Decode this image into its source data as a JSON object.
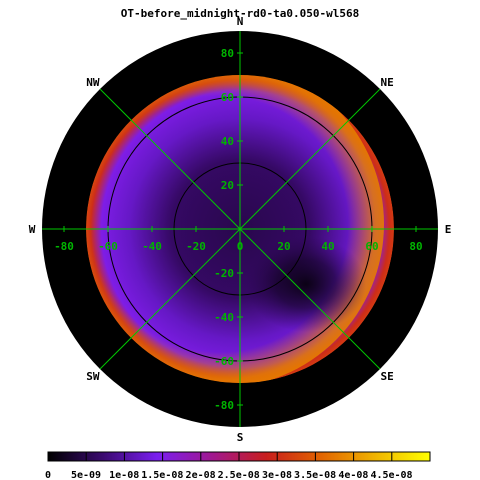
{
  "title": "OT-before_midnight-rd0-ta0.050-wl568",
  "colors": {
    "grid": "#00c800",
    "tick_text": "#00b400",
    "ring": "#000000",
    "background": "#000000"
  },
  "chart_data": {
    "type": "heatmap",
    "projection": "polar-sky",
    "title": "OT-before_midnight-rd0-ta0.050-wl568",
    "x_range": [
      -90,
      90
    ],
    "y_range": [
      -90,
      90
    ],
    "x_ticks": [
      "-80",
      "-60",
      "-40",
      "-20",
      "0",
      "20",
      "40",
      "60",
      "80"
    ],
    "x_tick_values": [
      -80,
      -60,
      -40,
      -20,
      0,
      20,
      40,
      60,
      80
    ],
    "y_ticks": [
      "80",
      "60",
      "40",
      "20",
      "0",
      "-20",
      "-40",
      "-60",
      "-80"
    ],
    "y_tick_values": [
      80,
      60,
      40,
      20,
      0,
      -20,
      -40,
      -60,
      -80
    ],
    "compass": [
      {
        "label": "N",
        "angle": 90
      },
      {
        "label": "NE",
        "angle": 45
      },
      {
        "label": "E",
        "angle": 0
      },
      {
        "label": "SE",
        "angle": -45
      },
      {
        "label": "S",
        "angle": -90
      },
      {
        "label": "SW",
        "angle": -135
      },
      {
        "label": "W",
        "angle": 180
      },
      {
        "label": "NW",
        "angle": 135
      }
    ],
    "zenith_rings": [
      30,
      60
    ],
    "data_extent_radius": 70,
    "colorbar": {
      "min": 0,
      "max": 5e-08,
      "tick_labels": [
        "0",
        "5e-09",
        "1e-08",
        "1.5e-08",
        "2e-08",
        "2.5e-08",
        "3e-08",
        "3.5e-08",
        "4e-08",
        "4.5e-08"
      ],
      "tick_values": [
        0,
        5e-09,
        1e-08,
        1.5e-08,
        2e-08,
        2.5e-08,
        3e-08,
        3.5e-08,
        4e-08,
        4.5e-08
      ],
      "palette": [
        "#000000",
        "#3a0a6e",
        "#7a1ef0",
        "#a01890",
        "#c81e1e",
        "#e26400",
        "#f0b400",
        "#ffff00"
      ]
    },
    "field": {
      "description_values": "approximate radiance levels",
      "center_value": 5e-09,
      "dark_spot": {
        "x": 30,
        "y": -25,
        "value": 1e-09
      },
      "mid_disk_value": 1.2e-08,
      "horizon_ring_value": 3e-08,
      "east_limb_value": 3.8e-08
    }
  }
}
